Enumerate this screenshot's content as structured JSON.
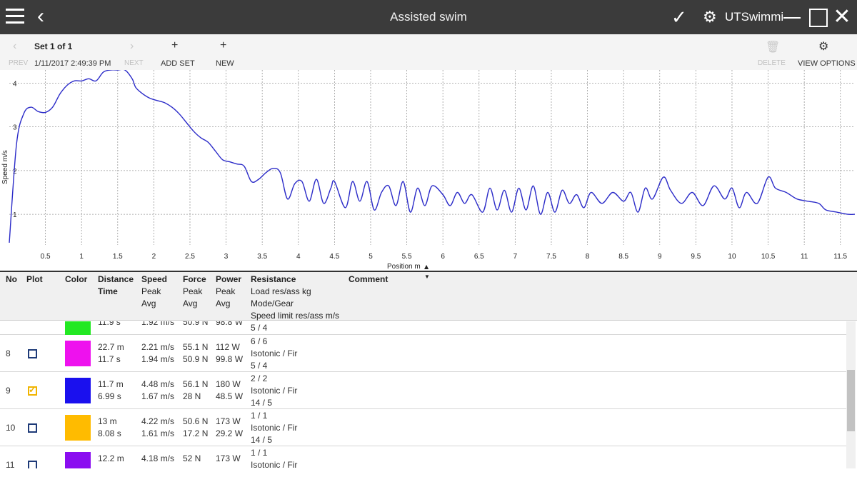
{
  "titlebar": {
    "title": "Assisted swim",
    "app_name": "UTSwimmi",
    "icons": [
      "hamburger-icon",
      "back-arrow-icon",
      "checkmark-icon",
      "gear-icon",
      "minimize-icon",
      "maximize-icon",
      "close-icon"
    ]
  },
  "toolbar": {
    "set_label": "Set 1 of 1",
    "prev_label": "PREV",
    "timestamp": "1/11/2017 2:49:39 PM",
    "next_label": "NEXT",
    "add_set_label": "ADD SET",
    "new_label": "NEW",
    "delete_label": "DELETE",
    "view_options_label": "VIEW OPTIONS"
  },
  "chart_data": {
    "type": "line",
    "xlabel": "Position m",
    "ylabel": "Speed m/s",
    "xlim": [
      0,
      11.7
    ],
    "ylim": [
      0.3,
      4.3
    ],
    "xticks": [
      0.5,
      1,
      1.5,
      2,
      2.5,
      3,
      3.5,
      4,
      4.5,
      5,
      5.5,
      6,
      6.5,
      7,
      7.5,
      8,
      8.5,
      9,
      9.5,
      10,
      10.5,
      11,
      11.5
    ],
    "yticks": [
      1,
      2,
      3,
      4
    ],
    "grid": true,
    "line_color": "#2b2bc8",
    "series": [
      {
        "x": [
          0.0,
          0.1,
          0.2,
          0.3,
          0.4,
          0.5,
          0.6,
          0.7,
          0.8,
          0.9,
          1.0,
          1.1,
          1.2,
          1.3,
          1.4,
          1.5,
          1.6,
          1.7,
          1.75,
          1.85,
          1.95,
          2.05,
          2.15,
          2.25,
          2.35,
          2.45,
          2.55,
          2.65,
          2.75,
          2.85,
          2.95,
          3.05,
          3.15,
          3.25,
          3.35,
          3.45,
          3.55,
          3.65,
          3.75,
          3.85,
          3.95,
          4.05,
          4.15,
          4.25,
          4.35,
          4.45,
          4.5,
          4.65,
          4.75,
          4.85,
          4.95,
          5.05,
          5.15,
          5.25,
          5.35,
          5.45,
          5.55,
          5.65,
          5.75,
          5.85,
          6.0,
          6.1,
          6.2,
          6.3,
          6.4,
          6.55,
          6.65,
          6.75,
          6.85,
          6.95,
          7.05,
          7.15,
          7.25,
          7.35,
          7.45,
          7.55,
          7.65,
          7.75,
          7.85,
          7.95,
          8.05,
          8.2,
          8.35,
          8.5,
          8.6,
          8.7,
          8.8,
          8.9,
          9.05,
          9.15,
          9.3,
          9.45,
          9.6,
          9.75,
          9.9,
          10.0,
          10.1,
          10.2,
          10.35,
          10.5,
          10.6,
          10.75,
          10.9,
          11.05,
          11.2,
          11.3,
          11.45,
          11.6,
          11.7
        ],
        "values": [
          0.35,
          2.6,
          3.3,
          3.45,
          3.35,
          3.33,
          3.45,
          3.75,
          3.95,
          4.05,
          4.05,
          4.1,
          4.05,
          4.25,
          4.35,
          4.45,
          4.35,
          4.1,
          3.9,
          3.75,
          3.65,
          3.6,
          3.55,
          3.45,
          3.3,
          3.1,
          2.9,
          2.75,
          2.65,
          2.45,
          2.25,
          2.2,
          2.15,
          2.1,
          1.75,
          1.8,
          1.95,
          2.05,
          1.95,
          1.35,
          1.7,
          1.75,
          1.3,
          1.8,
          1.25,
          1.6,
          1.75,
          1.15,
          1.75,
          1.3,
          1.75,
          1.1,
          1.5,
          1.65,
          1.2,
          1.75,
          1.05,
          1.6,
          1.2,
          1.65,
          1.45,
          1.2,
          1.5,
          1.25,
          1.45,
          1.05,
          1.6,
          1.1,
          1.55,
          1.05,
          1.6,
          1.1,
          1.65,
          1.0,
          1.5,
          1.05,
          1.55,
          1.25,
          1.45,
          1.15,
          1.5,
          1.25,
          1.5,
          1.3,
          1.5,
          1.05,
          1.6,
          1.35,
          1.85,
          1.55,
          1.25,
          1.5,
          1.2,
          1.65,
          1.35,
          1.6,
          1.15,
          1.5,
          1.25,
          1.85,
          1.6,
          1.5,
          1.35,
          1.3,
          1.25,
          1.1,
          1.05,
          1.0,
          1.0
        ]
      }
    ]
  },
  "table": {
    "headers": {
      "no": "No",
      "plot": "Plot",
      "color": "Color",
      "distance": [
        "Distance",
        "Time"
      ],
      "speed": [
        "Speed",
        "Peak",
        "Avg"
      ],
      "force": [
        "Force",
        "Peak",
        "Avg"
      ],
      "power": [
        "Power",
        "Peak",
        "Avg"
      ],
      "resistance": [
        "Resistance",
        "Load res/ass kg",
        "Mode/Gear",
        "Speed limit res/ass m/s"
      ],
      "comment": "Comment"
    },
    "partial_top_row": {
      "color": "#22e822",
      "time": "11.9 s",
      "speed_avg": "1.92 m/s",
      "force_avg": "50.9 N",
      "power_avg": "98.8 W",
      "speed_limit": "5 / 4"
    },
    "rows": [
      {
        "no": "8",
        "plotted": false,
        "color": "#ee11ee",
        "distance": "22.7 m",
        "time": "11.7 s",
        "speed_peak": "2.21 m/s",
        "speed_avg": "1.94 m/s",
        "force_peak": "55.1 N",
        "force_avg": "50.9 N",
        "power_peak": "112 W",
        "power_avg": "99.8 W",
        "load": "6 / 6",
        "mode": "Isotonic / Fir",
        "speed_limit": "5 / 4"
      },
      {
        "no": "9",
        "plotted": true,
        "color": "#1a10ee",
        "distance": "11.7 m",
        "time": "6.99 s",
        "speed_peak": "4.48 m/s",
        "speed_avg": "1.67 m/s",
        "force_peak": "56.1 N",
        "force_avg": "28 N",
        "power_peak": "180 W",
        "power_avg": "48.5 W",
        "load": "2 / 2",
        "mode": "Isotonic / Fir",
        "speed_limit": "14 / 5"
      },
      {
        "no": "10",
        "plotted": false,
        "color": "#ffbb00",
        "distance": "13 m",
        "time": "8.08 s",
        "speed_peak": "4.22 m/s",
        "speed_avg": "1.61 m/s",
        "force_peak": "50.6 N",
        "force_avg": "17.2 N",
        "power_peak": "173 W",
        "power_avg": "29.2 W",
        "load": "1 / 1",
        "mode": "Isotonic / Fir",
        "speed_limit": "14 / 5"
      },
      {
        "no": "11",
        "plotted": false,
        "color": "#8a0df0",
        "distance": "12.2 m",
        "time": "",
        "speed_peak": "4.18 m/s",
        "speed_avg": "",
        "force_peak": "52 N",
        "force_avg": "",
        "power_peak": "173 W",
        "power_avg": "",
        "load": "1 / 1",
        "mode": "Isotonic / Fir",
        "speed_limit": ""
      }
    ]
  }
}
